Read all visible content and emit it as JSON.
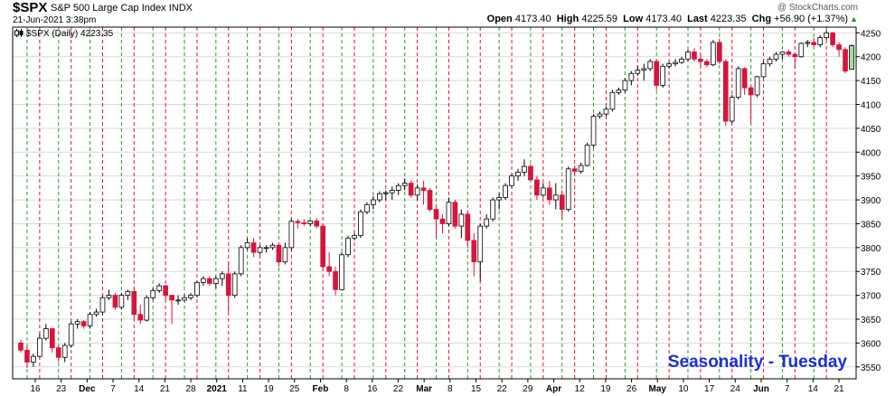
{
  "header": {
    "symbol": "$SPX",
    "description": "S&P 500 Large Cap Index",
    "exchange": "INDX",
    "timestamp": "21-Jun-2021 3:38pm",
    "watermark": "@ StockCharts.com",
    "ohlc": {
      "open_label": "Open",
      "open": "4173.40",
      "high_label": "High",
      "high": "4225.59",
      "low_label": "Low",
      "low": "4173.40",
      "last_label": "Last",
      "last": "4223.35",
      "chg_label": "Chg",
      "chg": "+56.90 (+1.37%)"
    },
    "up_arrow_icon": "triangle-up-icon"
  },
  "legend": {
    "text": "$SPX (Daily) 4223.35",
    "icon": "candlestick-icon"
  },
  "annotation": {
    "text": "Seasonality - Tuesday",
    "color": "#1a2fd4"
  },
  "colors": {
    "up": "#ffffff",
    "down": "#d6143c",
    "up_last": "#9be09b",
    "outline": "#000000",
    "tuesday_line": "#d6143c",
    "monday_line": "#2a9a2a",
    "grid": "#d8d8d8"
  },
  "chart_data": {
    "type": "candlestick",
    "title": "$SPX S&P 500 Large Cap Index",
    "ylim": [
      3525,
      4262
    ],
    "y_ticks": [
      3550,
      3600,
      3650,
      3700,
      3750,
      3800,
      3850,
      3900,
      3950,
      4000,
      4050,
      4100,
      4150,
      4200,
      4250
    ],
    "x_ticks": [
      {
        "label": "16",
        "bold": false
      },
      {
        "label": "23",
        "bold": false
      },
      {
        "label": "Dec",
        "bold": true
      },
      {
        "label": "7",
        "bold": false
      },
      {
        "label": "14",
        "bold": false
      },
      {
        "label": "21",
        "bold": false
      },
      {
        "label": "28",
        "bold": false
      },
      {
        "label": "2021",
        "bold": true
      },
      {
        "label": "11",
        "bold": false
      },
      {
        "label": "19",
        "bold": false
      },
      {
        "label": "25",
        "bold": false
      },
      {
        "label": "Feb",
        "bold": true
      },
      {
        "label": "8",
        "bold": false
      },
      {
        "label": "16",
        "bold": false
      },
      {
        "label": "22",
        "bold": false
      },
      {
        "label": "Mar",
        "bold": true
      },
      {
        "label": "8",
        "bold": false
      },
      {
        "label": "15",
        "bold": false
      },
      {
        "label": "22",
        "bold": false
      },
      {
        "label": "29",
        "bold": false
      },
      {
        "label": "Apr",
        "bold": true
      },
      {
        "label": "12",
        "bold": false
      },
      {
        "label": "19",
        "bold": false
      },
      {
        "label": "26",
        "bold": false
      },
      {
        "label": "May",
        "bold": true
      },
      {
        "label": "10",
        "bold": false
      },
      {
        "label": "17",
        "bold": false
      },
      {
        "label": "24",
        "bold": false
      },
      {
        "label": "Jun",
        "bold": true
      },
      {
        "label": "7",
        "bold": false
      },
      {
        "label": "14",
        "bold": false
      },
      {
        "label": "21",
        "bold": false
      }
    ],
    "candles": [
      [
        3600,
        3607,
        3580,
        3585
      ],
      [
        3585,
        3595,
        3548,
        3560
      ],
      [
        3560,
        3578,
        3550,
        3572
      ],
      [
        3572,
        3620,
        3570,
        3610
      ],
      [
        3610,
        3640,
        3605,
        3630
      ],
      [
        3630,
        3632,
        3580,
        3590
      ],
      [
        3590,
        3595,
        3560,
        3570
      ],
      [
        3570,
        3600,
        3560,
        3595
      ],
      [
        3595,
        3645,
        3590,
        3640
      ],
      [
        3640,
        3650,
        3630,
        3645
      ],
      [
        3645,
        3648,
        3630,
        3636
      ],
      [
        3636,
        3665,
        3630,
        3660
      ],
      [
        3660,
        3672,
        3655,
        3665
      ],
      [
        3665,
        3700,
        3660,
        3695
      ],
      [
        3695,
        3712,
        3690,
        3700
      ],
      [
        3700,
        3705,
        3670,
        3675
      ],
      [
        3675,
        3705,
        3670,
        3700
      ],
      [
        3700,
        3712,
        3690,
        3708
      ],
      [
        3708,
        3715,
        3650,
        3660
      ],
      [
        3660,
        3680,
        3640,
        3648
      ],
      [
        3648,
        3700,
        3645,
        3695
      ],
      [
        3695,
        3715,
        3690,
        3710
      ],
      [
        3710,
        3725,
        3705,
        3720
      ],
      [
        3720,
        3722,
        3690,
        3700
      ],
      [
        3700,
        3701,
        3640,
        3690
      ],
      [
        3690,
        3700,
        3680,
        3690
      ],
      [
        3690,
        3702,
        3685,
        3695
      ],
      [
        3695,
        3705,
        3690,
        3700
      ],
      [
        3700,
        3730,
        3695,
        3727
      ],
      [
        3727,
        3740,
        3720,
        3735
      ],
      [
        3735,
        3740,
        3720,
        3725
      ],
      [
        3725,
        3740,
        3715,
        3735
      ],
      [
        3735,
        3750,
        3720,
        3745
      ],
      [
        3745,
        3770,
        3665,
        3700
      ],
      [
        3700,
        3750,
        3695,
        3745
      ],
      [
        3745,
        3805,
        3740,
        3800
      ],
      [
        3800,
        3820,
        3795,
        3810
      ],
      [
        3810,
        3820,
        3780,
        3790
      ],
      [
        3790,
        3805,
        3785,
        3800
      ],
      [
        3800,
        3805,
        3790,
        3800
      ],
      [
        3800,
        3810,
        3795,
        3805
      ],
      [
        3805,
        3810,
        3760,
        3770
      ],
      [
        3770,
        3810,
        3765,
        3800
      ],
      [
        3800,
        3860,
        3795,
        3855
      ],
      [
        3855,
        3860,
        3840,
        3852
      ],
      [
        3852,
        3860,
        3845,
        3850
      ],
      [
        3850,
        3858,
        3845,
        3856
      ],
      [
        3856,
        3862,
        3840,
        3845
      ],
      [
        3845,
        3850,
        3755,
        3760
      ],
      [
        3760,
        3790,
        3740,
        3750
      ],
      [
        3750,
        3760,
        3700,
        3712
      ],
      [
        3712,
        3790,
        3710,
        3785
      ],
      [
        3785,
        3825,
        3780,
        3820
      ],
      [
        3820,
        3830,
        3815,
        3825
      ],
      [
        3825,
        3880,
        3820,
        3875
      ],
      [
        3875,
        3895,
        3870,
        3890
      ],
      [
        3890,
        3908,
        3880,
        3900
      ],
      [
        3900,
        3918,
        3895,
        3913
      ],
      [
        3913,
        3920,
        3900,
        3915
      ],
      [
        3915,
        3928,
        3900,
        3920
      ],
      [
        3920,
        3935,
        3910,
        3930
      ],
      [
        3930,
        3945,
        3920,
        3935
      ],
      [
        3935,
        3940,
        3905,
        3910
      ],
      [
        3910,
        3932,
        3900,
        3925
      ],
      [
        3925,
        3940,
        3890,
        3920
      ],
      [
        3920,
        3925,
        3875,
        3880
      ],
      [
        3880,
        3890,
        3820,
        3860
      ],
      [
        3860,
        3870,
        3830,
        3850
      ],
      [
        3850,
        3905,
        3845,
        3895
      ],
      [
        3895,
        3900,
        3840,
        3845
      ],
      [
        3845,
        3880,
        3820,
        3870
      ],
      [
        3870,
        3878,
        3800,
        3815
      ],
      [
        3815,
        3830,
        3740,
        3770
      ],
      [
        3770,
        3850,
        3730,
        3845
      ],
      [
        3845,
        3870,
        3840,
        3860
      ],
      [
        3860,
        3905,
        3855,
        3900
      ],
      [
        3900,
        3915,
        3880,
        3905
      ],
      [
        3905,
        3935,
        3900,
        3930
      ],
      [
        3930,
        3955,
        3925,
        3950
      ],
      [
        3950,
        3965,
        3940,
        3958
      ],
      [
        3958,
        3985,
        3950,
        3970
      ],
      [
        3970,
        3975,
        3940,
        3942
      ],
      [
        3942,
        3950,
        3900,
        3910
      ],
      [
        3910,
        3935,
        3905,
        3925
      ],
      [
        3925,
        3940,
        3890,
        3900
      ],
      [
        3900,
        3935,
        3880,
        3910
      ],
      [
        3910,
        3920,
        3860,
        3880
      ],
      [
        3880,
        3970,
        3875,
        3965
      ],
      [
        3965,
        3972,
        3955,
        3960
      ],
      [
        3960,
        3978,
        3955,
        3972
      ],
      [
        3972,
        4020,
        3970,
        4015
      ],
      [
        4015,
        4080,
        4010,
        4075
      ],
      [
        4075,
        4085,
        4070,
        4080
      ],
      [
        4080,
        4095,
        4075,
        4090
      ],
      [
        4090,
        4130,
        4085,
        4125
      ],
      [
        4125,
        4135,
        4120,
        4130
      ],
      [
        4130,
        4155,
        4125,
        4150
      ],
      [
        4150,
        4170,
        4140,
        4165
      ],
      [
        4165,
        4180,
        4160,
        4172
      ],
      [
        4172,
        4185,
        4150,
        4175
      ],
      [
        4175,
        4195,
        4170,
        4190
      ],
      [
        4190,
        4195,
        4130,
        4140
      ],
      [
        4140,
        4185,
        4135,
        4180
      ],
      [
        4180,
        4190,
        4175,
        4185
      ],
      [
        4185,
        4195,
        4180,
        4188
      ],
      [
        4188,
        4200,
        4185,
        4195
      ],
      [
        4195,
        4215,
        4190,
        4210
      ],
      [
        4210,
        4218,
        4190,
        4195
      ],
      [
        4195,
        4205,
        4180,
        4190
      ],
      [
        4190,
        4195,
        4178,
        4183
      ],
      [
        4183,
        4235,
        4180,
        4230
      ],
      [
        4230,
        4238,
        4185,
        4190
      ],
      [
        4190,
        4195,
        4055,
        4065
      ],
      [
        4065,
        4120,
        4060,
        4115
      ],
      [
        4115,
        4180,
        4110,
        4175
      ],
      [
        4175,
        4178,
        4120,
        4135
      ],
      [
        4135,
        4140,
        4060,
        4120
      ],
      [
        4120,
        4160,
        4115,
        4158
      ],
      [
        4158,
        4190,
        4155,
        4185
      ],
      [
        4185,
        4200,
        4180,
        4195
      ],
      [
        4195,
        4210,
        4190,
        4205
      ],
      [
        4205,
        4212,
        4195,
        4210
      ],
      [
        4210,
        4215,
        4200,
        4205
      ],
      [
        4205,
        4208,
        4175,
        4200
      ],
      [
        4200,
        4230,
        4198,
        4228
      ],
      [
        4228,
        4235,
        4220,
        4230
      ],
      [
        4230,
        4240,
        4220,
        4225
      ],
      [
        4225,
        4245,
        4220,
        4240
      ],
      [
        4240,
        4255,
        4235,
        4250
      ],
      [
        4250,
        4252,
        4220,
        4225
      ],
      [
        4225,
        4230,
        4200,
        4215
      ],
      [
        4215,
        4220,
        4165,
        4170
      ],
      [
        4173.4,
        4225.59,
        4173.4,
        4223.35
      ]
    ],
    "tuesday_indices": [
      3,
      8,
      13,
      18,
      23,
      28,
      33,
      38,
      43,
      48,
      53,
      58,
      63,
      68,
      73,
      78,
      83,
      88,
      93,
      98,
      103,
      108,
      113,
      118,
      123,
      128
    ],
    "monday_indices": [
      1,
      6,
      11,
      16,
      21,
      26,
      31,
      36,
      41,
      46,
      51,
      56,
      61,
      66,
      71,
      76,
      81,
      86,
      91,
      96,
      101,
      106,
      111,
      116,
      121,
      126
    ]
  }
}
